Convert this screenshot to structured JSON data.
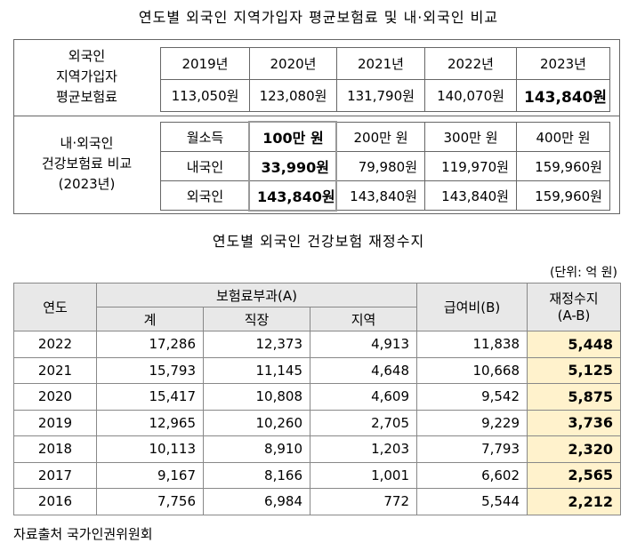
{
  "title1": "연도별 외국인 지역가입자 평균보험료 및 내·외국인 비교",
  "table1": {
    "premium": {
      "label": [
        "외국인",
        "지역가입자",
        "평균보험료"
      ],
      "header": [
        "2019년",
        "2020년",
        "2021년",
        "2022년",
        "2023년"
      ],
      "values": [
        "113,050원",
        "123,080원",
        "131,790원",
        "140,070원",
        "143,840원"
      ]
    },
    "comparison": {
      "label": [
        "내·외국인",
        "건강보험료 비교",
        "(2023년)"
      ],
      "rows": [
        [
          "월소득",
          "100만 원",
          "200만 원",
          "300만 원",
          "400만 원"
        ],
        [
          "내국인",
          "33,990원",
          "79,980원",
          "119,970원",
          "159,960원"
        ],
        [
          "외국인",
          "143,840원",
          "143,840원",
          "143,840원",
          "159,960원"
        ]
      ]
    }
  },
  "title2": "연도별 외국인 건강보험 재정수지",
  "unit": "(단위: 억 원)",
  "table2": {
    "header": {
      "year": "연도",
      "premium": "보험료부과(A)",
      "sub": [
        "계",
        "직장",
        "지역"
      ],
      "benefit": "급여비(B)",
      "balance": [
        "재정수지",
        "(A-B)"
      ]
    },
    "rows": [
      [
        "2022",
        "17,286",
        "12,373",
        "4,913",
        "11,838",
        "5,448"
      ],
      [
        "2021",
        "15,793",
        "11,145",
        "4,648",
        "10,668",
        "5,125"
      ],
      [
        "2020",
        "15,417",
        "10,808",
        "4,609",
        "9,542",
        "5,875"
      ],
      [
        "2019",
        "12,965",
        "10,260",
        "2,705",
        "9,229",
        "3,736"
      ],
      [
        "2018",
        "10,113",
        "8,910",
        "1,203",
        "7,793",
        "2,320"
      ],
      [
        "2017",
        "9,167",
        "8,166",
        "1,001",
        "6,602",
        "2,565"
      ],
      [
        "2016",
        "7,756",
        "6,984",
        "772",
        "5,544",
        "2,212"
      ]
    ]
  },
  "source": "자료출처 국가인권위원회"
}
